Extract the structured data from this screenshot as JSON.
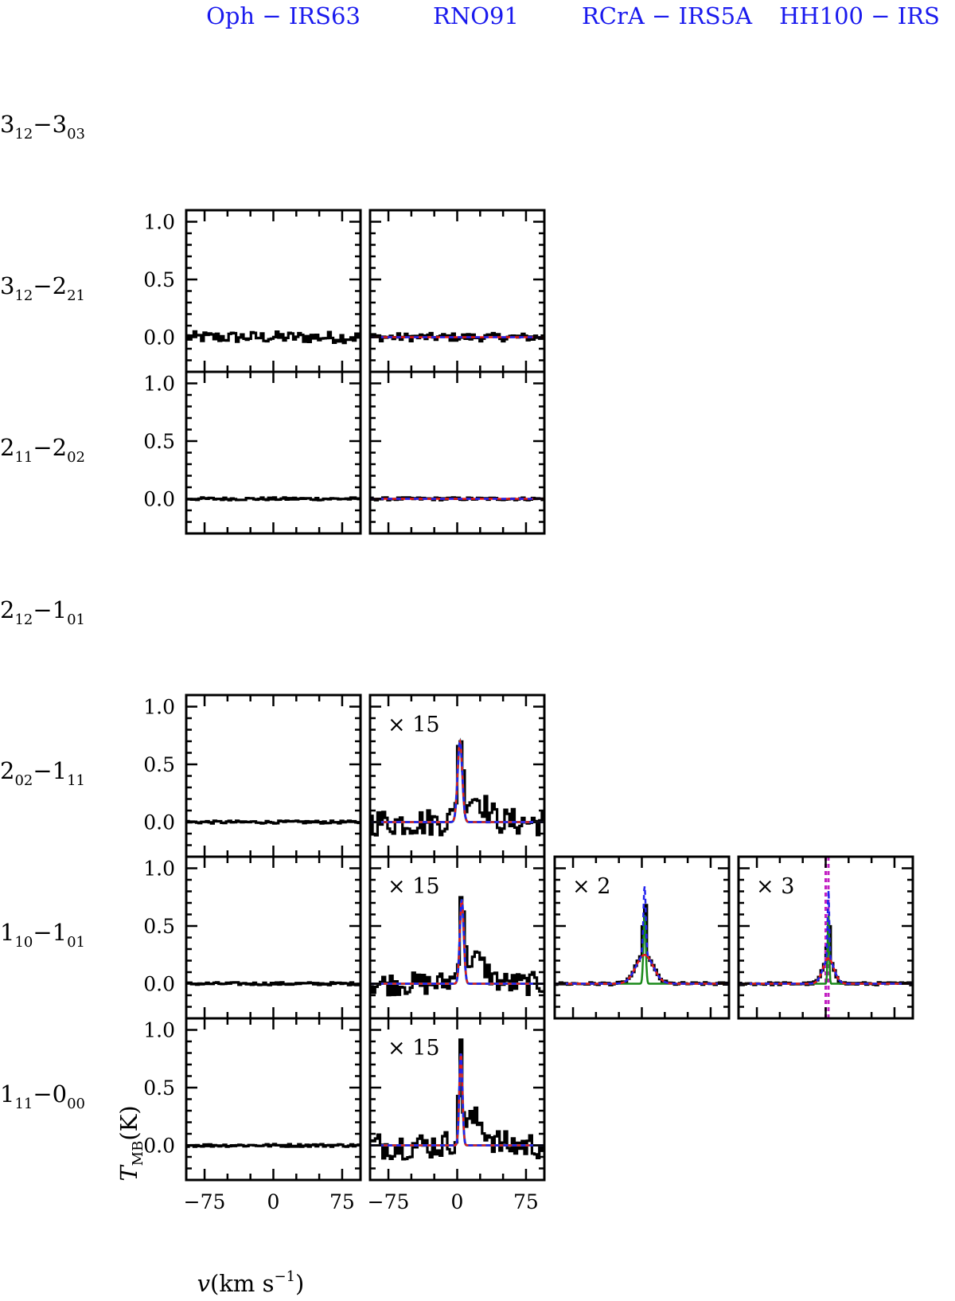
{
  "figure": {
    "sources": [
      "Oph − IRS63",
      "RNO91",
      "RCrA − IRS5A",
      "HH100 − IRS"
    ],
    "transitions": [
      {
        "main": "3",
        "sub1": "12",
        "mid": "−3",
        "sub2": "03"
      },
      {
        "main": "3",
        "sub1": "12",
        "mid": "−2",
        "sub2": "21"
      },
      {
        "main": "2",
        "sub1": "11",
        "mid": "−2",
        "sub2": "02"
      },
      {
        "main": "2",
        "sub1": "12",
        "mid": "−1",
        "sub2": "01"
      },
      {
        "main": "2",
        "sub1": "02",
        "mid": "−1",
        "sub2": "11"
      },
      {
        "main": "1",
        "sub1": "10",
        "mid": "−1",
        "sub2": "01"
      },
      {
        "main": "1",
        "sub1": "11",
        "mid": "−0",
        "sub2": "00"
      }
    ],
    "ylabel": {
      "main": "T",
      "sub": "MB",
      "rest": "(K)"
    },
    "xlabel": {
      "pre": "v",
      "mid": "(km s",
      "sup": "−1",
      "post": ")"
    },
    "yticks": [
      "1.0",
      "0.5",
      "0.0"
    ],
    "xticks": [
      "−75",
      "0",
      "75"
    ],
    "colors": {
      "source_label": "#1a1aee",
      "observed": "#000000",
      "fit_total": "#e41a1c",
      "fit_blue": "#2222ee",
      "fit_cyan": "#00b5c8",
      "fit_green": "#1a8a1a",
      "vlsr_marker": "#c21fc2"
    }
  },
  "chart_data": {
    "type": "line",
    "description_units": {
      "x": "km s^-1",
      "y": "K"
    },
    "xlim": [
      -95,
      95
    ],
    "ylim": [
      -0.3,
      1.1
    ],
    "xticks": [
      -75,
      0,
      75
    ],
    "yticks": [
      0.0,
      0.5,
      1.0
    ],
    "panels": [
      {
        "source": "Oph − IRS63",
        "transition": "3_12−2_21",
        "scale": "",
        "baseline": 0.0,
        "noise": 0.05,
        "components": []
      },
      {
        "source": "RNO91",
        "transition": "3_12−2_21",
        "scale": "",
        "baseline": 0.0,
        "noise": 0.035,
        "components": []
      },
      {
        "source": "Oph − IRS63",
        "transition": "2_11−2_02",
        "scale": "",
        "baseline": 0.0,
        "noise": 0.012,
        "components": []
      },
      {
        "source": "RNO91",
        "transition": "2_11−2_02",
        "scale": "",
        "baseline": 0.0,
        "noise": 0.012,
        "components": []
      },
      {
        "source": "Oph − IRS63",
        "transition": "2_02−1_11",
        "scale": "",
        "baseline": 0.0,
        "noise": 0.012,
        "components": []
      },
      {
        "source": "RNO91",
        "transition": "2_02−1_11",
        "scale": "× 15",
        "baseline": 0.0,
        "noise": 0.12,
        "components": [
          {
            "center": 3,
            "fwhm": 6,
            "peak": 0.7
          }
        ]
      },
      {
        "source": "Oph − IRS63",
        "transition": "1_10−1_01",
        "scale": "",
        "baseline": 0.0,
        "noise": 0.012,
        "components": []
      },
      {
        "source": "RNO91",
        "transition": "1_10−1_01",
        "scale": "× 15",
        "baseline": 0.0,
        "noise": 0.1,
        "components": [
          {
            "center": 5,
            "fwhm": 5,
            "peak": 0.73
          }
        ]
      },
      {
        "source": "RCrA − IRS5A",
        "transition": "1_10−1_01",
        "scale": "× 2",
        "baseline": 0.0,
        "noise": 0.012,
        "components": [
          {
            "center": 3,
            "fwhm": 3,
            "peak": 0.6
          },
          {
            "center": 3,
            "fwhm": 22,
            "peak": 0.25
          }
        ]
      },
      {
        "source": "HH100 − IRS",
        "transition": "1_10−1_01",
        "scale": "× 3",
        "baseline": 0.0,
        "noise": 0.012,
        "components": [
          {
            "center": 3,
            "fwhm": 2,
            "peak": 0.6
          },
          {
            "center": 3,
            "fwhm": 14,
            "peak": 0.22
          }
        ],
        "vlsr": [
          0,
          3
        ]
      },
      {
        "source": "Oph − IRS63",
        "transition": "1_11−0_00",
        "scale": "",
        "baseline": 0.0,
        "noise": 0.012,
        "components": []
      },
      {
        "source": "RNO91",
        "transition": "1_11−0_00",
        "scale": "× 15",
        "baseline": 0.0,
        "noise": 0.12,
        "components": [
          {
            "center": 4,
            "fwhm": 4,
            "peak": 0.8
          }
        ]
      }
    ]
  }
}
